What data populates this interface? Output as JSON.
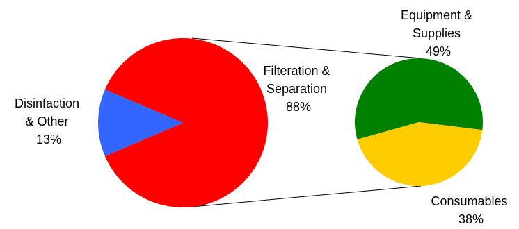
{
  "chart_data": {
    "type": "pie",
    "variant": "pie-of-pie",
    "main_pie": {
      "slices": [
        {
          "label_lines": [
            "Filteration &",
            "Separation"
          ],
          "value_label": "88%",
          "value": 88,
          "color": "#ff0000"
        },
        {
          "label_lines": [
            "Disinfaction",
            "& Other"
          ],
          "value_label": "13%",
          "value": 13,
          "color": "#3366ff"
        }
      ]
    },
    "secondary_pie": {
      "slices": [
        {
          "label_lines": [
            "Equipment &",
            "Supplies"
          ],
          "value_label": "49%",
          "value": 49,
          "color": "#008000"
        },
        {
          "label_lines": [
            "Consumables"
          ],
          "value_label": "38%",
          "value": 38,
          "color": "#ffcc00"
        }
      ]
    }
  }
}
